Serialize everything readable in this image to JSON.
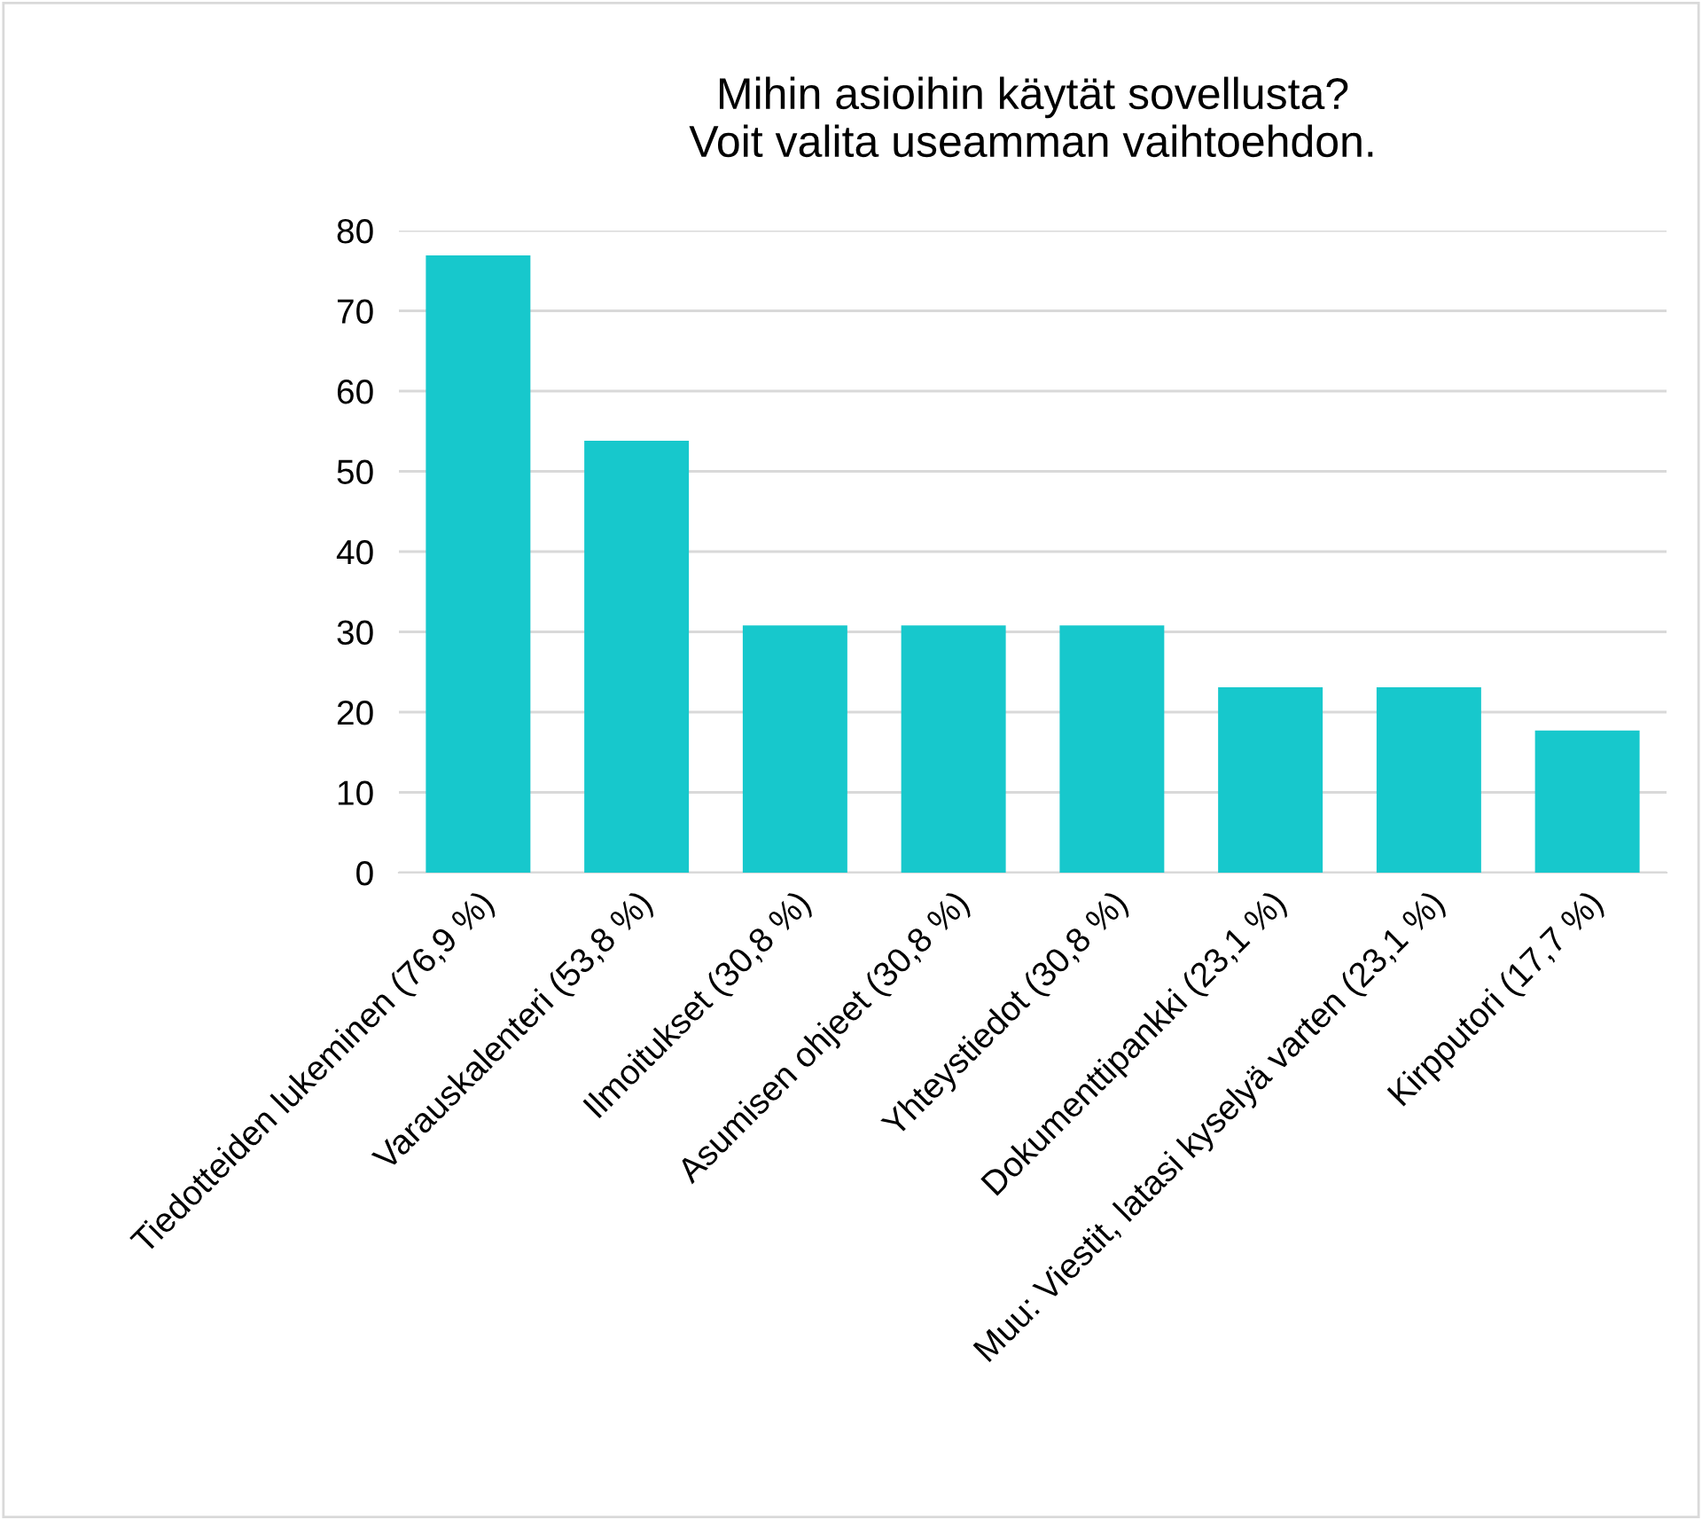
{
  "chart_data": {
    "type": "bar",
    "title": "Mihin asioihin käytät sovellusta?\nVoit valita useamman vaihtoehdon.",
    "categories": [
      "Tiedotteiden lukeminen (76,9 %)",
      "Varauskalenteri (53,8 %)",
      "Ilmoitukset (30,8 %)",
      "Asumisen ohjeet (30,8 %)",
      "Yhteystiedot (30,8 %)",
      "Dokumenttipankki (23,1 %)",
      "Muu: Viestit, latasi kyselyä varten (23,1 %)",
      "Kirpputori (17,7 %)"
    ],
    "values": [
      76.9,
      53.8,
      30.8,
      30.8,
      30.8,
      23.1,
      23.1,
      17.7
    ],
    "color": "#17c8cc",
    "ylim": [
      0,
      80
    ],
    "yticks": [
      0,
      10,
      20,
      30,
      40,
      50,
      60,
      70,
      80
    ],
    "grid": "y"
  }
}
